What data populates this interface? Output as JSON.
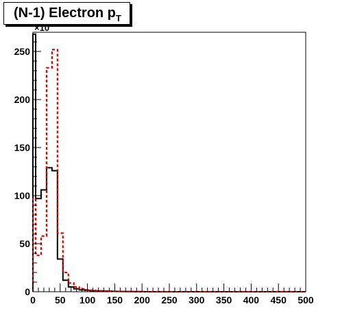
{
  "title": {
    "main": "(N-1) Electron p",
    "subscript": "T"
  },
  "chart_data": {
    "type": "histogram",
    "title": "(N-1) Electron pT",
    "xlabel": "",
    "ylabel": "",
    "xlim": [
      0,
      500
    ],
    "ylim": [
      0,
      270
    ],
    "y_multiplier_label": "×10",
    "x_ticks": [
      "0",
      "50",
      "100",
      "150",
      "200",
      "250",
      "300",
      "350",
      "400",
      "450",
      "500"
    ],
    "y_ticks": [
      "0",
      "50",
      "100",
      "150",
      "200",
      "250"
    ],
    "bin_edges": [
      0,
      5,
      15,
      25,
      35,
      45,
      55,
      65,
      75,
      85,
      95,
      105,
      115,
      125,
      135,
      145,
      155,
      165,
      175,
      185,
      195,
      205,
      500
    ],
    "series": [
      {
        "color": "#000000",
        "style": "solid",
        "values": [
          268,
          97,
          106,
          129,
          126,
          34,
          12,
          5,
          3,
          2,
          1.5,
          1,
          0.8,
          0.6,
          0.5,
          0.4,
          0.3,
          0.2,
          0.2,
          0.1,
          0.1,
          0
        ]
      },
      {
        "color": "#dd0000",
        "style": "dashed",
        "values": [
          97,
          38,
          58,
          233,
          252,
          61,
          20,
          9,
          5,
          3,
          2,
          1.5,
          1,
          0.8,
          0.6,
          0.5,
          0.4,
          0.3,
          0.2,
          0.2,
          0.1,
          0
        ]
      }
    ]
  }
}
